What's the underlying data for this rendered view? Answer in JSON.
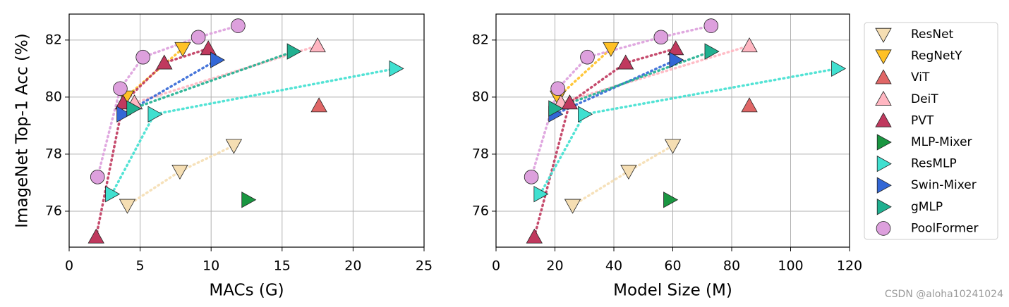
{
  "chart_data": [
    {
      "type": "scatter",
      "xlabel": "MACs (G)",
      "ylabel": "ImageNet Top-1 Acc (%)",
      "xlim": [
        0,
        25
      ],
      "ylim": [
        74.74,
        82.91
      ],
      "xticks": [
        0,
        5,
        10,
        15,
        20,
        25
      ],
      "yticks": [
        76,
        78,
        80,
        82
      ],
      "grid": true,
      "series": [
        {
          "name": "ResNet",
          "color": "#f5deb3",
          "marker": "triangle-down",
          "x": [
            4.1,
            7.8,
            11.6
          ],
          "values": [
            76.2,
            77.4,
            78.3
          ]
        },
        {
          "name": "RegNetY",
          "color": "#ffc125",
          "marker": "triangle-down",
          "x": [
            4.0,
            8.0
          ],
          "values": [
            80.0,
            81.7
          ]
        },
        {
          "name": "ViT",
          "color": "#e06666",
          "marker": "triangle-up",
          "x": [
            17.6
          ],
          "values": [
            79.7
          ]
        },
        {
          "name": "DeiT",
          "color": "#ffb6c1",
          "marker": "triangle-up",
          "x": [
            4.6,
            17.5
          ],
          "values": [
            79.8,
            81.8
          ]
        },
        {
          "name": "PVT",
          "color": "#c0395e",
          "marker": "triangle-up",
          "x": [
            1.9,
            3.8,
            6.7,
            9.8
          ],
          "values": [
            75.1,
            79.8,
            81.2,
            81.7
          ]
        },
        {
          "name": "MLP-Mixer",
          "color": "#1a9641",
          "marker": "triangle-right",
          "x": [
            12.6
          ],
          "values": [
            76.4
          ]
        },
        {
          "name": "ResMLP",
          "color": "#40e0d0",
          "marker": "triangle-right",
          "x": [
            3.0,
            6.0,
            23.0
          ],
          "values": [
            76.6,
            79.4,
            81.0
          ]
        },
        {
          "name": "Swin-Mixer",
          "color": "#3367d6",
          "marker": "triangle-right",
          "x": [
            3.8,
            10.4
          ],
          "values": [
            79.4,
            81.3
          ]
        },
        {
          "name": "gMLP",
          "color": "#20b090",
          "marker": "triangle-right",
          "x": [
            4.5,
            15.8
          ],
          "values": [
            79.6,
            81.6
          ]
        },
        {
          "name": "PoolFormer",
          "color": "#dda0dd",
          "marker": "circle",
          "x": [
            2.0,
            3.6,
            5.2,
            9.1,
            11.9
          ],
          "values": [
            77.2,
            80.3,
            81.4,
            82.1,
            82.5
          ]
        }
      ]
    },
    {
      "type": "scatter",
      "xlabel": "Model Size (M)",
      "legend": "outside right",
      "xlim": [
        0,
        120
      ],
      "ylim": [
        74.74,
        82.91
      ],
      "xticks": [
        0,
        20,
        40,
        60,
        80,
        100,
        120
      ],
      "yticks": [
        76,
        78,
        80,
        82
      ],
      "grid": true,
      "series": [
        {
          "name": "ResNet",
          "color": "#f5deb3",
          "marker": "triangle-down",
          "x": [
            26,
            45,
            60
          ],
          "values": [
            76.2,
            77.4,
            78.3
          ]
        },
        {
          "name": "RegNetY",
          "color": "#ffc125",
          "marker": "triangle-down",
          "x": [
            21,
            39
          ],
          "values": [
            80.0,
            81.7
          ]
        },
        {
          "name": "ViT",
          "color": "#e06666",
          "marker": "triangle-up",
          "x": [
            86
          ],
          "values": [
            79.7
          ]
        },
        {
          "name": "DeiT",
          "color": "#ffb6c1",
          "marker": "triangle-up",
          "x": [
            22,
            86
          ],
          "values": [
            79.8,
            81.8
          ]
        },
        {
          "name": "PVT",
          "color": "#c0395e",
          "marker": "triangle-up",
          "x": [
            13,
            25,
            44,
            61
          ],
          "values": [
            75.1,
            79.8,
            81.2,
            81.7
          ]
        },
        {
          "name": "MLP-Mixer",
          "color": "#1a9641",
          "marker": "triangle-right",
          "x": [
            59
          ],
          "values": [
            76.4
          ]
        },
        {
          "name": "ResMLP",
          "color": "#40e0d0",
          "marker": "triangle-right",
          "x": [
            15,
            30,
            116
          ],
          "values": [
            76.6,
            79.4,
            81.0
          ]
        },
        {
          "name": "Swin-Mixer",
          "color": "#3367d6",
          "marker": "triangle-right",
          "x": [
            20,
            61
          ],
          "values": [
            79.4,
            81.3
          ]
        },
        {
          "name": "gMLP",
          "color": "#20b090",
          "marker": "triangle-right",
          "x": [
            20,
            73
          ],
          "values": [
            79.6,
            81.6
          ]
        },
        {
          "name": "PoolFormer",
          "color": "#dda0dd",
          "marker": "circle",
          "x": [
            12,
            21,
            31,
            56,
            73
          ],
          "values": [
            77.2,
            80.3,
            81.4,
            82.1,
            82.5
          ]
        }
      ]
    }
  ],
  "watermark": "CSDN @aloha10241024"
}
